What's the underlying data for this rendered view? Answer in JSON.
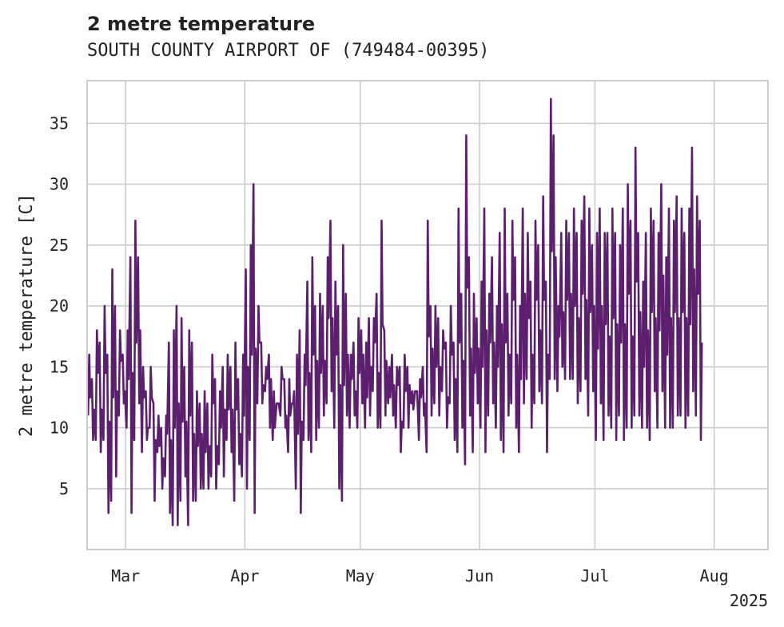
{
  "chart_data": {
    "type": "line",
    "title": "2 metre temperature",
    "subtitle": "SOUTH COUNTY AIRPORT OF (749484-00395)",
    "xlabel": "",
    "ylabel": "2 metre temperature [C]",
    "x_range": [
      "2025-02-19",
      "2025-08-15"
    ],
    "ylim": [
      0,
      38.5
    ],
    "y_ticks": [
      5,
      10,
      15,
      20,
      25,
      30,
      35
    ],
    "x_ticks": [
      {
        "date": "2025-03-01",
        "label": "Mar"
      },
      {
        "date": "2025-04-01",
        "label": "Apr"
      },
      {
        "date": "2025-05-01",
        "label": "May"
      },
      {
        "date": "2025-06-01",
        "label": "Jun"
      },
      {
        "date": "2025-07-01",
        "label": "Jul"
      },
      {
        "date": "2025-08-01",
        "label": "Aug"
      }
    ],
    "year_label": "2025",
    "grid": true,
    "legend": "none",
    "line_color": "#5b1f6e",
    "series": [
      {
        "x_start": "2025-02-19",
        "x_step": "1 day",
        "values": [
          [
            11,
            16
          ],
          [
            9,
            14
          ],
          [
            9,
            18
          ],
          [
            8,
            17
          ],
          [
            9,
            20
          ],
          [
            3,
            16
          ],
          [
            4,
            23
          ],
          [
            6,
            20
          ],
          [
            11,
            18
          ],
          [
            12,
            16
          ],
          [
            10,
            18
          ],
          [
            3,
            24
          ],
          [
            9,
            27
          ],
          [
            12,
            24
          ],
          [
            8,
            15
          ],
          [
            9,
            13
          ],
          [
            10,
            15
          ],
          [
            4,
            12
          ],
          [
            8,
            11
          ],
          [
            5,
            10
          ],
          [
            6,
            11
          ],
          [
            3,
            17
          ],
          [
            2,
            18
          ],
          [
            2,
            20
          ],
          [
            4,
            19
          ],
          [
            6,
            15
          ],
          [
            2,
            18
          ],
          [
            4,
            17
          ],
          [
            4,
            13
          ],
          [
            5,
            12
          ],
          [
            5,
            13
          ],
          [
            5,
            12
          ],
          [
            6,
            16
          ],
          [
            5,
            14
          ],
          [
            7,
            13
          ],
          [
            6,
            15
          ],
          [
            9,
            16
          ],
          [
            8,
            15
          ],
          [
            4,
            17
          ],
          [
            7,
            14
          ],
          [
            6,
            16
          ],
          [
            5,
            23
          ],
          [
            9,
            25
          ],
          [
            3,
            30
          ],
          [
            12,
            20
          ],
          [
            12,
            17
          ],
          [
            13,
            15
          ],
          [
            10,
            16
          ],
          [
            9,
            13
          ],
          [
            12,
            12
          ],
          [
            11,
            15
          ],
          [
            10,
            14
          ],
          [
            8,
            14
          ],
          [
            12,
            12
          ],
          [
            5,
            16
          ],
          [
            3,
            18
          ],
          [
            9,
            16
          ],
          [
            9,
            22
          ],
          [
            8,
            24
          ],
          [
            9,
            20
          ],
          [
            10,
            21
          ],
          [
            11,
            20
          ],
          [
            12,
            24
          ],
          [
            13,
            27
          ],
          [
            10,
            22
          ],
          [
            5,
            20
          ],
          [
            4,
            25
          ],
          [
            11,
            21
          ],
          [
            10,
            16
          ],
          [
            11,
            17
          ],
          [
            10,
            19
          ],
          [
            12,
            18
          ],
          [
            10,
            17
          ],
          [
            11,
            19
          ],
          [
            13,
            19
          ],
          [
            10,
            21
          ],
          [
            10,
            27
          ],
          [
            11,
            18
          ],
          [
            12,
            15
          ],
          [
            11,
            16
          ],
          [
            10,
            15
          ],
          [
            8,
            15
          ],
          [
            10,
            16
          ],
          [
            10,
            15
          ],
          [
            12,
            13
          ],
          [
            13,
            13
          ],
          [
            9,
            14
          ],
          [
            11,
            15
          ],
          [
            8,
            27
          ],
          [
            11,
            20
          ],
          [
            12,
            20
          ],
          [
            11,
            19
          ],
          [
            13,
            18
          ],
          [
            10,
            17
          ],
          [
            12,
            20
          ],
          [
            9,
            17
          ],
          [
            8,
            28
          ],
          [
            10,
            21
          ],
          [
            7,
            34
          ],
          [
            11,
            24
          ],
          [
            8,
            21
          ],
          [
            12,
            19
          ],
          [
            10,
            22
          ],
          [
            8,
            28
          ],
          [
            11,
            21
          ],
          [
            12,
            24
          ],
          [
            10,
            20
          ],
          [
            9,
            26
          ],
          [
            8,
            28
          ],
          [
            11,
            21
          ],
          [
            12,
            27
          ],
          [
            10,
            24
          ],
          [
            8,
            20
          ],
          [
            12,
            28
          ],
          [
            14,
            26
          ],
          [
            10,
            22
          ],
          [
            12,
            27
          ],
          [
            13,
            25
          ],
          [
            12,
            29
          ],
          [
            8,
            22
          ],
          [
            14,
            37
          ],
          [
            14,
            34
          ],
          [
            13,
            20
          ],
          [
            15,
            26
          ],
          [
            14,
            27
          ],
          [
            14,
            26
          ],
          [
            14,
            28
          ],
          [
            12,
            26
          ],
          [
            13,
            27
          ],
          [
            14,
            29
          ],
          [
            11,
            28
          ],
          [
            13,
            25
          ],
          [
            9,
            26
          ],
          [
            12,
            28
          ],
          [
            9,
            26
          ],
          [
            11,
            26
          ],
          [
            10,
            28
          ],
          [
            9,
            26
          ],
          [
            11,
            25
          ],
          [
            9,
            28
          ],
          [
            10,
            30
          ],
          [
            10,
            27
          ],
          [
            11,
            33
          ],
          [
            11,
            26
          ],
          [
            10,
            22
          ],
          [
            10,
            26
          ],
          [
            9,
            28
          ],
          [
            13,
            27
          ],
          [
            10,
            26
          ],
          [
            13,
            30
          ],
          [
            10,
            24
          ],
          [
            10,
            28
          ],
          [
            10,
            27
          ],
          [
            11,
            29
          ],
          [
            11,
            28
          ],
          [
            10,
            26
          ],
          [
            11,
            28
          ],
          [
            13,
            33
          ],
          [
            11,
            29
          ],
          [
            9,
            27
          ]
        ]
      }
    ]
  }
}
